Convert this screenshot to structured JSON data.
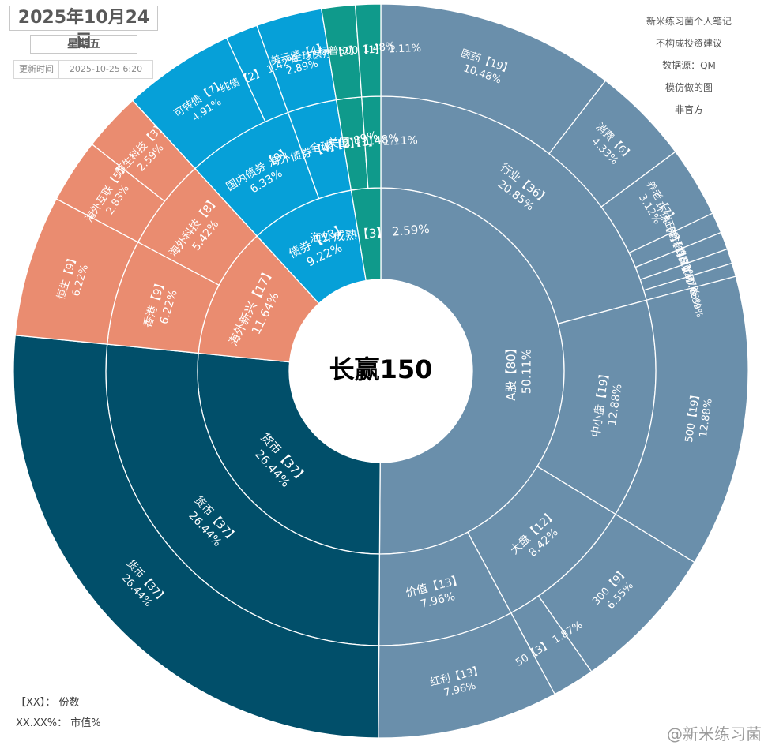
{
  "header": {
    "date": "2025年10月24日",
    "weekday": "星期五",
    "update_label": "更新时间",
    "update_value": "2025-10-25 6:20"
  },
  "notes": [
    "新米练习菌个人笔记",
    "不构成投资建议",
    "数据源：QM",
    "模仿做的图",
    "非官方"
  ],
  "legend": [
    {
      "key": "【XX】：",
      "text": "份数"
    },
    {
      "key": "XX.XX%：",
      "text": "市值%"
    }
  ],
  "watermark": "@新米练习菌",
  "colors": {
    "a_share": "#6a8fab",
    "money": "#014f6a",
    "overseas_emerging": "#ea8c70",
    "bond": "#06a0d8",
    "overseas_mature": "#0f9a8b",
    "divider": "#ffffff"
  },
  "chart_data": {
    "type": "sunburst",
    "title": "长赢150",
    "start_angle_deg": 0,
    "direction": "clockwise",
    "nodes": [
      {
        "name": "A股",
        "shares": 80,
        "pct": 50.11,
        "color_key": "a_share",
        "label": "A股【80】",
        "value_label": "50.11%",
        "children": [
          {
            "name": "行业",
            "shares": 36,
            "pct": 20.85,
            "label": "行业【36】",
            "value_label": "20.85%",
            "children": [
              {
                "name": "医药",
                "shares": 19,
                "pct": 10.48,
                "label": "医药【19】",
                "value_label": "10.48%"
              },
              {
                "name": "消费",
                "shares": 6,
                "pct": 4.33,
                "label": "消费【6】",
                "value_label": "4.33%"
              },
              {
                "name": "养老",
                "shares": 7,
                "pct": 3.12,
                "label": "养老【7】",
                "value_label": "3.12%"
              },
              {
                "name": "环保",
                "shares": 1,
                "pct": 0.91,
                "label": "环保【1】",
                "value_label": "0.91%"
              },
              {
                "name": "证券",
                "shares": 1,
                "pct": 0.77,
                "label": "证券【1】",
                "value_label": "0.77%"
              },
              {
                "name": "金融",
                "shares": 1,
                "pct": 0.65,
                "label": "金融【1】",
                "value_label": "0.65%"
              },
              {
                "name": "传媒",
                "shares": 1,
                "pct": 0.59,
                "label": "传媒【1】",
                "value_label": "0.59%"
              }
            ]
          },
          {
            "name": "中小盘",
            "shares": 19,
            "pct": 12.88,
            "label": "中小盘【19】",
            "value_label": "12.88%",
            "children": [
              {
                "name": "500",
                "shares": 19,
                "pct": 12.88,
                "label": "500【19】",
                "value_label": "12.88%"
              }
            ]
          },
          {
            "name": "大盘",
            "shares": 12,
            "pct": 8.42,
            "label": "大盘【12】",
            "value_label": "8.42%",
            "children": [
              {
                "name": "300",
                "shares": 9,
                "pct": 6.55,
                "label": "300【9】",
                "value_label": "6.55%"
              },
              {
                "name": "50",
                "shares": 3,
                "pct": 1.87,
                "label": "50【3】",
                "value_label": "1.87%"
              }
            ]
          },
          {
            "name": "价值",
            "shares": 13,
            "pct": 7.96,
            "label": "价值【13】",
            "value_label": "7.96%",
            "children": [
              {
                "name": "红利",
                "shares": 13,
                "pct": 7.96,
                "label": "红利【13】",
                "value_label": "7.96%"
              }
            ]
          }
        ]
      },
      {
        "name": "货币",
        "shares": 37,
        "pct": 26.44,
        "color_key": "money",
        "label": "货币【37】",
        "value_label": "26.44%",
        "children": [
          {
            "name": "货币",
            "shares": 37,
            "pct": 26.44,
            "label": "货币【37】",
            "value_label": "26.44%",
            "children": [
              {
                "name": "货币",
                "shares": 37,
                "pct": 26.44,
                "label": "货币【37】",
                "value_label": "26.44%"
              }
            ]
          }
        ]
      },
      {
        "name": "海外新兴",
        "shares": 17,
        "pct": 11.64,
        "color_key": "overseas_emerging",
        "label": "海外新兴【17】",
        "value_label": "11.64%",
        "children": [
          {
            "name": "香港",
            "shares": 9,
            "pct": 6.22,
            "label": "香港【9】",
            "value_label": "6.22%",
            "children": [
              {
                "name": "恒生",
                "shares": 9,
                "pct": 6.22,
                "label": "恒生【9】",
                "value_label": "6.22%"
              }
            ]
          },
          {
            "name": "海外科技",
            "shares": 8,
            "pct": 5.42,
            "label": "海外科技【8】",
            "value_label": "5.42%",
            "children": [
              {
                "name": "海外互联",
                "shares": 5,
                "pct": 2.83,
                "label": "海外互联【5】",
                "value_label": "2.83%"
              },
              {
                "name": "恒生科技",
                "shares": 3,
                "pct": 2.59,
                "label": "恒生科技【3】",
                "value_label": "2.59%"
              }
            ]
          }
        ]
      },
      {
        "name": "债券",
        "shares": 13,
        "pct": 9.22,
        "color_key": "bond",
        "label": "债券【13】",
        "value_label": "9.22%",
        "children": [
          {
            "name": "国内债券",
            "shares": 9,
            "pct": 6.33,
            "label": "国内债券【9】",
            "value_label": "6.33%",
            "children": [
              {
                "name": "可转债",
                "shares": 7,
                "pct": 4.91,
                "label": "可转债【7】",
                "value_label": "4.91%"
              },
              {
                "name": "纯债",
                "shares": 2,
                "pct": 1.42,
                "label": "纯债【2】",
                "value_label": "1.42%"
              }
            ]
          },
          {
            "name": "海外债券",
            "shares": 4,
            "pct": 2.89,
            "label": "海外债券【4】",
            "value_label": "2.89%",
            "children": [
              {
                "name": "美元债",
                "shares": 4,
                "pct": 2.89,
                "label": "美元债【4】",
                "value_label": "2.89%"
              }
            ]
          }
        ]
      },
      {
        "name": "海外成熟",
        "shares": 3,
        "pct": 2.59,
        "color_key": "overseas_mature",
        "label": "海外成熟【3】",
        "value_label": "2.59%",
        "children": [
          {
            "name": "全球",
            "shares": 2,
            "pct": 1.48,
            "label": "全球【2】",
            "value_label": "1.48%",
            "children": [
              {
                "name": "全球医疗",
                "shares": 2,
                "pct": 1.48,
                "label": "全球医疗【2】",
                "value_label": "1.48%"
              }
            ]
          },
          {
            "name": "美国",
            "shares": 1,
            "pct": 1.11,
            "label": "美国【1】",
            "value_label": "1.11%",
            "children": [
              {
                "name": "标普500",
                "shares": 1,
                "pct": 1.11,
                "label": "标普500【1】",
                "value_label": "1.11%"
              }
            ]
          }
        ]
      }
    ]
  }
}
